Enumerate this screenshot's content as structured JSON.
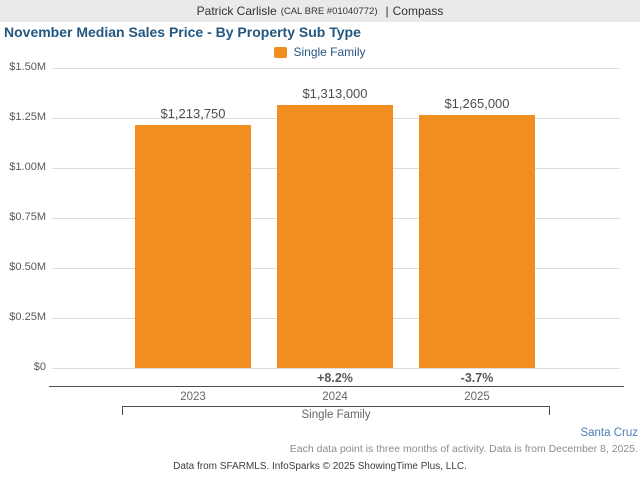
{
  "header": {
    "agent_name": "Patrick Carlisle",
    "license": "(CAL BRE #01040772)",
    "separator": "|",
    "brokerage": "Compass"
  },
  "title": "November Median Sales Price - By Property Sub Type",
  "legend": {
    "label": "Single Family",
    "color": "#F08E21"
  },
  "chart_data": {
    "type": "bar",
    "title": "November Median Sales Price - By Property Sub Type",
    "categories": [
      "2023",
      "2024",
      "2025"
    ],
    "series": [
      {
        "name": "Single Family",
        "color": "#F08E21",
        "values": [
          1213750,
          1313000,
          1265000
        ]
      }
    ],
    "value_labels": [
      "$1,213,750",
      "$1,313,000",
      "$1,265,000"
    ],
    "pct_change_labels": [
      "",
      "+8.2%",
      "-3.7%"
    ],
    "group_label": "Single Family",
    "xlabel": "",
    "ylabel": "",
    "ylim": [
      0,
      1500000
    ],
    "yticks": [
      {
        "value": 0,
        "label": "$0"
      },
      {
        "value": 250000,
        "label": "$0.25M"
      },
      {
        "value": 500000,
        "label": "$0.50M"
      },
      {
        "value": 750000,
        "label": "$0.75M"
      },
      {
        "value": 1000000,
        "label": "$1.00M"
      },
      {
        "value": 1250000,
        "label": "$1.25M"
      },
      {
        "value": 1500000,
        "label": "$1.50M"
      }
    ],
    "grid": true,
    "legend_position": "top-center"
  },
  "footer": {
    "region": "Santa Cruz",
    "disclaimer": "Each data point is three months of activity. Data is from December 8, 2025.",
    "attribution": "Data from SFARMLS. InfoSparks © 2025 ShowingTime Plus, LLC."
  }
}
